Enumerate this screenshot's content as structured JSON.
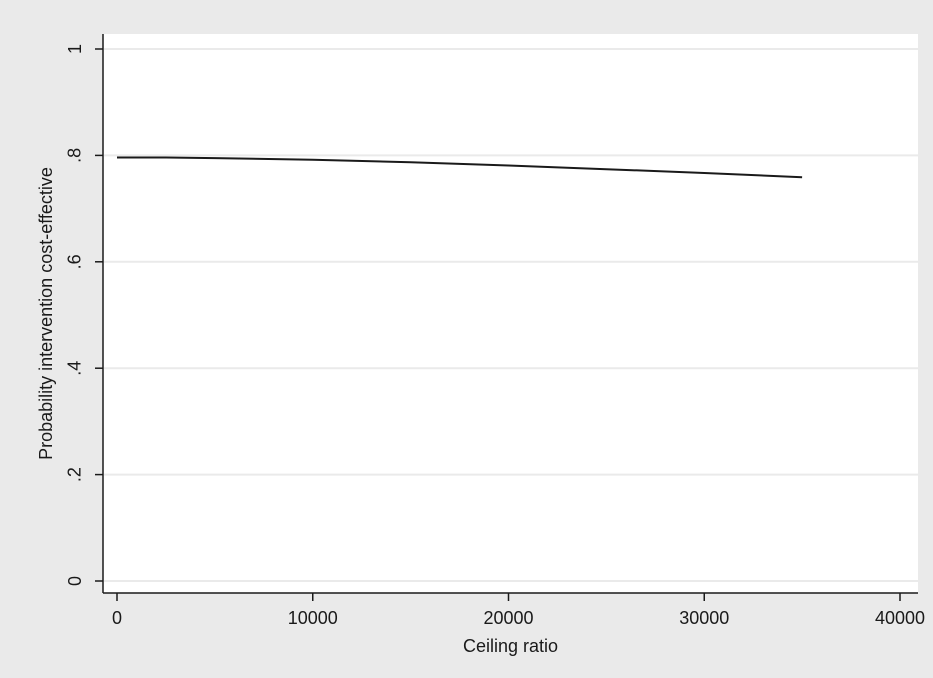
{
  "chart_data": {
    "type": "line",
    "title": "",
    "xlabel": "Ceiling ratio",
    "ylabel": "Probability intervention cost-effective",
    "xlim": [
      0,
      40000
    ],
    "ylim": [
      0,
      1
    ],
    "x_ticks": [
      0,
      10000,
      20000,
      30000,
      40000
    ],
    "x_tick_labels": [
      "0",
      "10000",
      "20000",
      "30000",
      "40000"
    ],
    "y_ticks": [
      0,
      0.2,
      0.4,
      0.6,
      0.8,
      1
    ],
    "y_tick_labels": [
      "0",
      ".2",
      ".4",
      ".6",
      ".8",
      "1"
    ],
    "grid": true,
    "legend": false,
    "series": [
      {
        "x": [
          0,
          2500,
          5000,
          10000,
          15000,
          20000,
          25000,
          30000,
          35000
        ],
        "y": [
          0.796,
          0.796,
          0.795,
          0.792,
          0.787,
          0.781,
          0.774,
          0.767,
          0.759
        ],
        "color": "#1a1a1a"
      }
    ],
    "colors": {
      "outer_background": "#eaeaea",
      "plot_background": "#ffffff",
      "gridline": "#eaeaea",
      "axis": "#1a1a1a",
      "line": "#1a1a1a"
    }
  }
}
